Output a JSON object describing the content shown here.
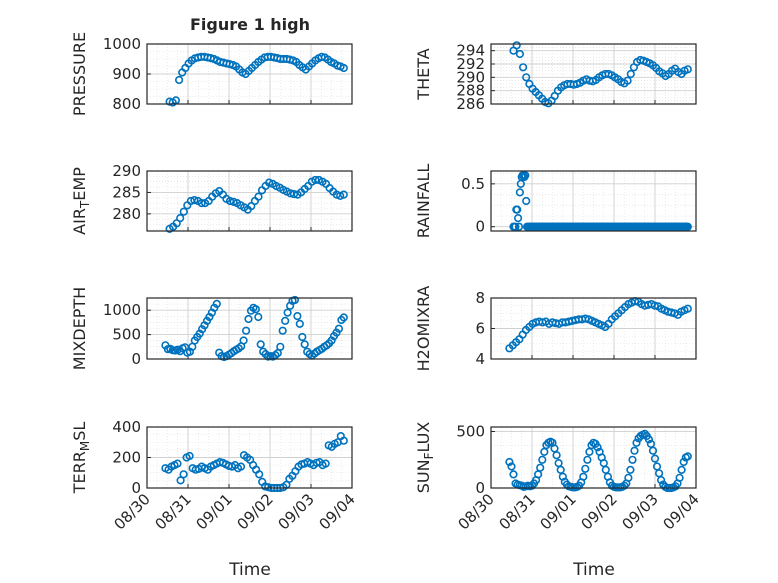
{
  "title": "Figure 1 high",
  "chart_data": [
    {
      "type": "scatter",
      "panel": "pressure",
      "ylabel": "PRESSURE",
      "ylim": [
        800,
        1000
      ],
      "yticks": [
        "800",
        "900",
        "1000"
      ],
      "y": [
        808,
        805,
        812,
        880,
        905,
        920,
        935,
        945,
        952,
        955,
        957,
        957,
        955,
        953,
        950,
        945,
        940,
        938,
        935,
        933,
        930,
        925,
        915,
        905,
        900,
        910,
        920,
        930,
        940,
        948,
        955,
        957,
        957,
        955,
        953,
        950,
        950,
        950,
        948,
        945,
        940,
        930,
        922,
        915,
        925,
        935,
        945,
        952,
        957,
        955,
        948,
        940,
        935,
        928,
        925,
        920
      ]
    },
    {
      "type": "scatter",
      "panel": "theta",
      "ylabel": "THETA",
      "ylim": [
        286,
        295
      ],
      "yticks": [
        "286",
        "288",
        "290",
        "292",
        "294"
      ],
      "y": [
        294,
        294.8,
        293.5,
        291.5,
        290,
        289,
        288.3,
        287.8,
        287.3,
        286.8,
        286.3,
        286.1,
        286.5,
        287.2,
        288,
        288.5,
        288.8,
        289,
        289,
        288.9,
        289,
        289.2,
        289.5,
        289.7,
        289.5,
        289.4,
        289.6,
        290,
        290.3,
        290.5,
        290.5,
        290.3,
        290,
        289.7,
        289.3,
        289.1,
        289.5,
        290.5,
        291.5,
        292.3,
        292.6,
        292.5,
        292.3,
        292.1,
        291.8,
        291.4,
        290.9,
        290.6,
        290.2,
        290.5,
        291,
        291.3,
        290.8,
        290.5,
        291,
        291.2
      ]
    },
    {
      "type": "scatter",
      "panel": "air_temp",
      "ylabel": "AIR_TEMP",
      "ylim": [
        276,
        290
      ],
      "yticks": [
        "280",
        "285",
        "290"
      ],
      "y": [
        276.5,
        277,
        277.8,
        279,
        280.5,
        282,
        283,
        283.2,
        283,
        282.5,
        282.5,
        283,
        284,
        284.8,
        285.3,
        284.5,
        283.5,
        283,
        282.8,
        282.5,
        282,
        281.5,
        281,
        281.8,
        283,
        284,
        285.5,
        286.5,
        287.3,
        287,
        286.5,
        286.1,
        285.6,
        285.2,
        284.8,
        284.6,
        284.5,
        285,
        285.8,
        286.5,
        287.5,
        287.9,
        287.9,
        287.5,
        287,
        286,
        285.2,
        284.5,
        284.2,
        284.5
      ]
    },
    {
      "type": "scatter",
      "panel": "rainfall",
      "ylabel": "RAINFALL",
      "ylim": [
        -0.05,
        0.65
      ],
      "yticks": [
        "0",
        "0.5"
      ],
      "y": [
        0,
        0,
        0,
        0.2,
        0.2,
        0.1,
        0,
        0.4,
        0.5,
        0.58,
        0.6,
        0.6,
        0.58,
        0.6,
        0.3,
        0,
        0,
        0,
        0,
        0,
        0,
        0,
        0,
        0,
        0,
        0,
        0,
        0,
        0,
        0,
        0,
        0,
        0,
        0,
        0,
        0,
        0,
        0,
        0,
        0,
        0,
        0,
        0,
        0,
        0,
        0,
        0,
        0,
        0,
        0,
        0,
        0,
        0,
        0,
        0,
        0,
        0,
        0,
        0,
        0,
        0,
        0,
        0,
        0,
        0,
        0,
        0,
        0,
        0,
        0,
        0,
        0,
        0,
        0,
        0,
        0,
        0,
        0,
        0,
        0,
        0,
        0,
        0,
        0,
        0,
        0,
        0,
        0,
        0,
        0,
        0,
        0,
        0,
        0,
        0,
        0,
        0,
        0,
        0,
        0,
        0,
        0,
        0,
        0,
        0,
        0,
        0,
        0,
        0,
        0,
        0,
        0,
        0,
        0,
        0,
        0,
        0,
        0,
        0,
        0,
        0,
        0,
        0,
        0,
        0,
        0,
        0,
        0,
        0,
        0,
        0,
        0,
        0,
        0,
        0,
        0,
        0,
        0,
        0,
        0,
        0,
        0,
        0,
        0,
        0,
        0,
        0,
        0,
        0,
        0,
        0,
        0,
        0,
        0,
        0,
        0,
        0,
        0,
        0,
        0,
        0,
        0,
        0,
        0,
        0,
        0,
        0,
        0,
        0,
        0,
        0,
        0,
        0,
        0,
        0,
        0,
        0,
        0,
        0,
        0,
        0,
        0,
        0,
        0,
        0,
        0,
        0,
        0,
        0,
        0,
        0,
        0,
        0,
        0
      ]
    },
    {
      "type": "scatter",
      "panel": "mixdepth",
      "ylabel": "MIXDEPTH",
      "ylim": [
        0,
        1250
      ],
      "yticks": [
        "0",
        "500",
        "1000"
      ],
      "y": [
        280,
        200,
        210,
        180,
        175,
        190,
        160,
        220,
        240,
        130,
        150,
        250,
        380,
        450,
        520,
        610,
        690,
        780,
        860,
        950,
        1050,
        1130,
        130,
        60,
        40,
        60,
        90,
        120,
        160,
        190,
        220,
        260,
        380,
        580,
        820,
        990,
        1050,
        1020,
        860,
        300,
        150,
        100,
        50,
        60,
        50,
        80,
        120,
        250,
        580,
        780,
        950,
        1090,
        1190,
        1210,
        880,
        720,
        450,
        300,
        150,
        100,
        70,
        110,
        150,
        180,
        210,
        250,
        280,
        320,
        380,
        470,
        540,
        620,
        800,
        850
      ]
    },
    {
      "type": "scatter",
      "panel": "h2omixra",
      "ylabel": "H2OMIXRA",
      "ylim": [
        4,
        8
      ],
      "yticks": [
        "4",
        "6",
        "8"
      ],
      "y": [
        4.7,
        4.9,
        5.1,
        5.3,
        5.6,
        5.9,
        6.1,
        6.3,
        6.4,
        6.45,
        6.4,
        6.45,
        6.3,
        6.4,
        6.35,
        6.3,
        6.4,
        6.4,
        6.45,
        6.5,
        6.55,
        6.6,
        6.6,
        6.65,
        6.6,
        6.5,
        6.4,
        6.3,
        6.2,
        6.1,
        6.3,
        6.6,
        6.8,
        7,
        7.2,
        7.4,
        7.6,
        7.7,
        7.8,
        7.75,
        7.6,
        7.5,
        7.55,
        7.6,
        7.5,
        7.45,
        7.3,
        7.2,
        7.1,
        7.05,
        7,
        6.9,
        7.1,
        7.2,
        7.3
      ]
    },
    {
      "type": "scatter",
      "panel": "terr_msl",
      "ylabel": "TERR_MSL",
      "ylim": [
        0,
        400
      ],
      "yticks": [
        "0",
        "200",
        "400"
      ],
      "y": [
        130,
        120,
        140,
        150,
        160,
        50,
        90,
        200,
        210,
        130,
        120,
        125,
        140,
        130,
        120,
        140,
        150,
        160,
        170,
        165,
        155,
        145,
        140,
        150,
        130,
        140,
        215,
        200,
        185,
        150,
        120,
        90,
        40,
        10,
        5,
        0,
        0,
        0,
        0,
        5,
        20,
        60,
        80,
        110,
        140,
        155,
        160,
        170,
        160,
        150,
        165,
        170,
        150,
        160,
        280,
        270,
        290,
        300,
        340,
        310
      ]
    },
    {
      "type": "scatter",
      "panel": "sun_flux",
      "ylabel": "SUN_FLUX",
      "ylim": [
        0,
        540
      ],
      "yticks": [
        "0",
        "500"
      ],
      "y": [
        230,
        190,
        120,
        40,
        30,
        25,
        20,
        10,
        15,
        20,
        15,
        20,
        40,
        70,
        120,
        180,
        250,
        320,
        380,
        400,
        410,
        400,
        350,
        290,
        220,
        160,
        100,
        55,
        30,
        15,
        10,
        5,
        5,
        10,
        20,
        50,
        100,
        170,
        250,
        320,
        380,
        400,
        390,
        360,
        320,
        270,
        220,
        160,
        100,
        50,
        20,
        10,
        5,
        5,
        5,
        10,
        20,
        40,
        90,
        160,
        250,
        330,
        400,
        440,
        460,
        470,
        480,
        460,
        430,
        390,
        330,
        260,
        190,
        130,
        70,
        30,
        10,
        0,
        0,
        0,
        5,
        15,
        40,
        90,
        160,
        230,
        270,
        280
      ]
    }
  ],
  "xaxis": {
    "xlabel": "Time",
    "ticks": [
      "08/30",
      "08/31",
      "09/01",
      "09/02",
      "09/03",
      "09/04"
    ]
  }
}
